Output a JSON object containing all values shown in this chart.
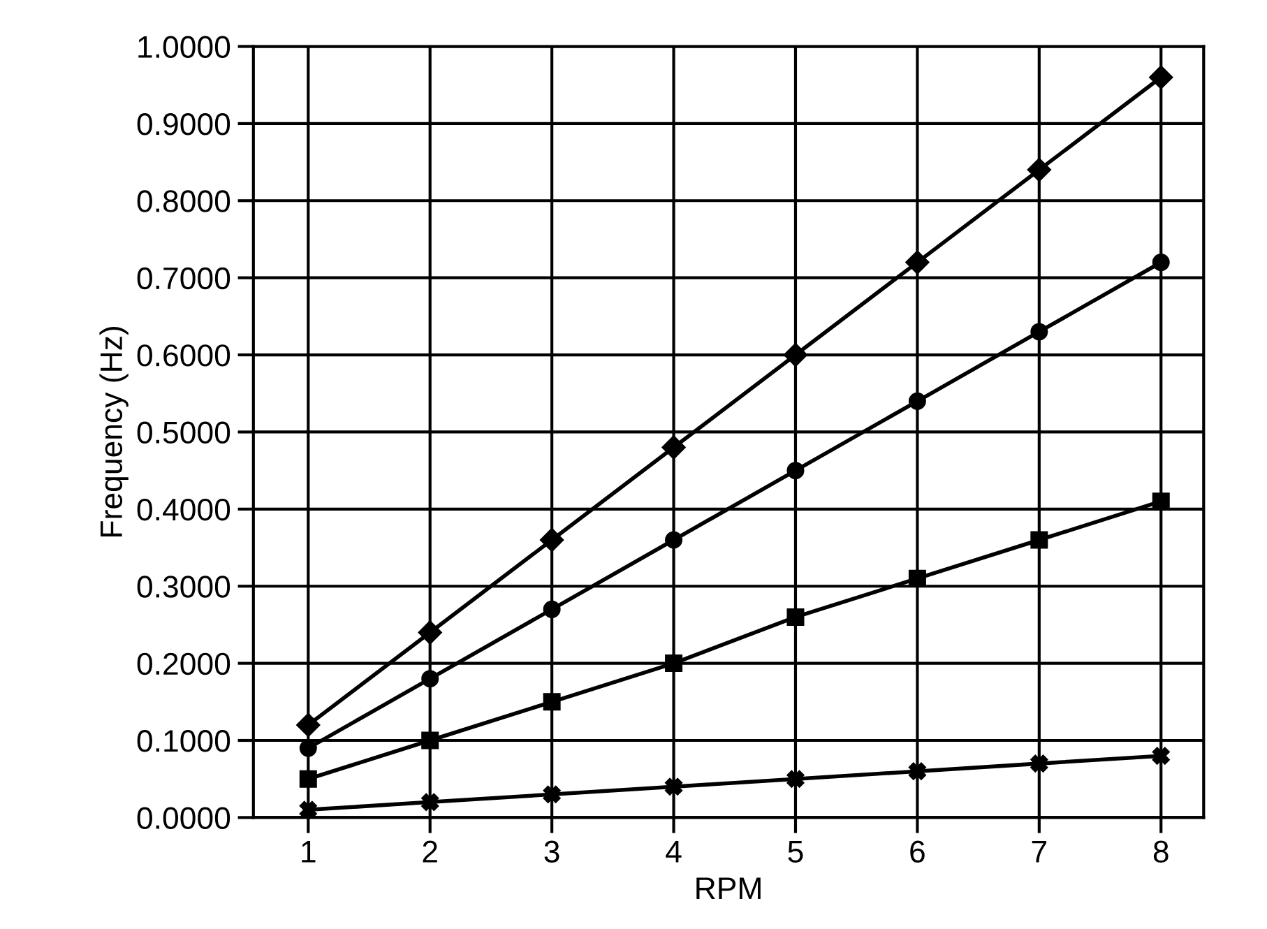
{
  "chart_data": {
    "type": "line",
    "xlabel": "RPM",
    "ylabel": "Frequency (Hz)",
    "x": [
      1,
      2,
      3,
      4,
      5,
      6,
      7,
      8
    ],
    "series": [
      {
        "color": "#000000",
        "marker": "diamond",
        "values": [
          0.12,
          0.24,
          0.36,
          0.48,
          0.6,
          0.72,
          0.84,
          0.96
        ]
      },
      {
        "color": "#000000",
        "marker": "circle",
        "values": [
          0.09,
          0.18,
          0.27,
          0.36,
          0.45,
          0.54,
          0.63,
          0.72
        ]
      },
      {
        "color": "#000000",
        "marker": "square",
        "values": [
          0.05,
          0.1,
          0.15,
          0.2,
          0.26,
          0.31,
          0.36,
          0.41
        ]
      },
      {
        "color": "#000000",
        "marker": "cross",
        "values": [
          0.01,
          0.02,
          0.03,
          0.04,
          0.05,
          0.06,
          0.07,
          0.08
        ]
      }
    ],
    "xlim": [
      0.55,
      8.35
    ],
    "xticks": [
      1,
      2,
      3,
      4,
      5,
      6,
      7,
      8
    ],
    "ylim": [
      0,
      1
    ],
    "yticks": [
      {
        "value": 0,
        "label": "0.0000"
      },
      {
        "value": 0.1,
        "label": "0.1000"
      },
      {
        "value": 0.2,
        "label": "0.2000"
      },
      {
        "value": 0.3,
        "label": "0.3000"
      },
      {
        "value": 0.4,
        "label": "0.4000"
      },
      {
        "value": 0.5,
        "label": "0.5000"
      },
      {
        "value": 0.6,
        "label": "0.6000"
      },
      {
        "value": 0.7,
        "label": "0.7000"
      },
      {
        "value": 0.8,
        "label": "0.8000"
      },
      {
        "value": 0.9,
        "label": "0.9000"
      },
      {
        "value": 1,
        "label": "1.0000"
      }
    ],
    "grid": true,
    "line_style": "solid"
  }
}
